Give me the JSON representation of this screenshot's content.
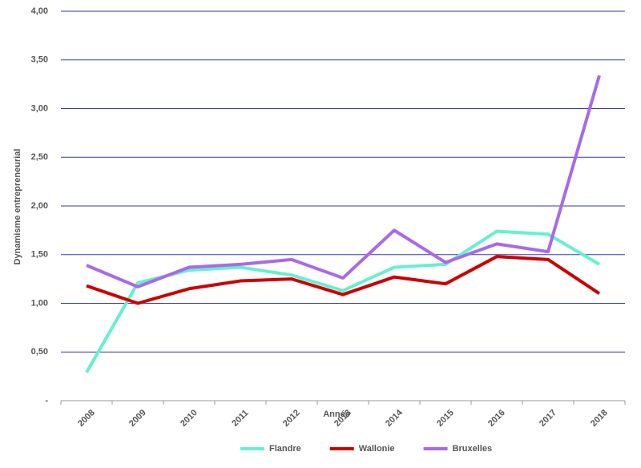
{
  "chart_data": {
    "type": "line",
    "x_label": "Année",
    "y_label": "Dynamisme entrepreneurial",
    "categories": [
      "2008",
      "2009",
      "2010",
      "2011",
      "2012",
      "2013",
      "2014",
      "2015",
      "2016",
      "2017",
      "2018"
    ],
    "series": [
      {
        "name": "Flandre",
        "color": "#66f0d0",
        "values": [
          0.29,
          1.21,
          1.34,
          1.37,
          1.29,
          1.13,
          1.37,
          1.4,
          1.74,
          1.71,
          1.4
        ]
      },
      {
        "name": "Wallonie",
        "color": "#cc0000",
        "values": [
          1.18,
          1.0,
          1.15,
          1.23,
          1.25,
          1.09,
          1.27,
          1.2,
          1.48,
          1.45,
          1.1
        ]
      },
      {
        "name": "Bruxelles",
        "color": "#a86ae8",
        "values": [
          1.39,
          1.17,
          1.37,
          1.4,
          1.45,
          1.26,
          1.75,
          1.42,
          1.61,
          1.53,
          3.34
        ]
      }
    ],
    "ylim": [
      0,
      4
    ],
    "yticks": [
      {
        "value": 0,
        "label": "-"
      },
      {
        "value": 0.5,
        "label": "0,50"
      },
      {
        "value": 1,
        "label": "1,00"
      },
      {
        "value": 1.5,
        "label": "1,50"
      },
      {
        "value": 2,
        "label": "2,00"
      },
      {
        "value": 2.5,
        "label": "2,50"
      },
      {
        "value": 3,
        "label": "3,00"
      },
      {
        "value": 3.5,
        "label": "3,50"
      },
      {
        "value": 4,
        "label": "4,00"
      }
    ],
    "grid": true,
    "legend": "bottom"
  }
}
